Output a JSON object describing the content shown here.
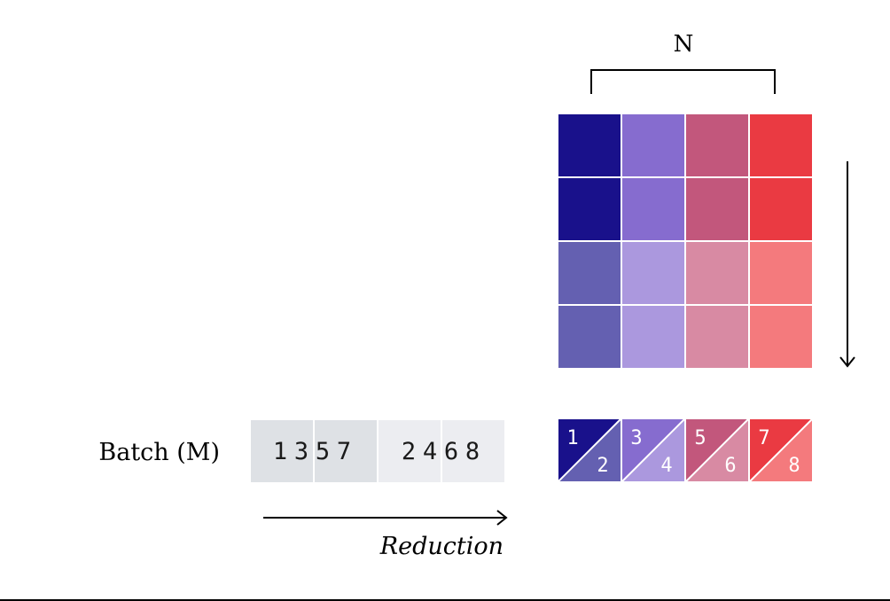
{
  "labels": {
    "n": "N",
    "batch": "Batch (M)",
    "reduction": "Reduction"
  },
  "colors": {
    "col_dark": [
      "#19118b",
      "#866ccf",
      "#c2577c",
      "#ea3a42"
    ],
    "col_light": [
      "#6460b1",
      "#ab98de",
      "#d88aa3",
      "#f47a7d"
    ],
    "input_dark": "#dee1e5",
    "input_light": "#ecedf1",
    "line": "#000000"
  },
  "input_tokens": [
    "1",
    "3",
    "5",
    "7",
    "2",
    "4",
    "6",
    "8"
  ],
  "output_pairs": [
    {
      "top": "1",
      "bottom": "2"
    },
    {
      "top": "3",
      "bottom": "4"
    },
    {
      "top": "5",
      "bottom": "6"
    },
    {
      "top": "7",
      "bottom": "8"
    }
  ]
}
